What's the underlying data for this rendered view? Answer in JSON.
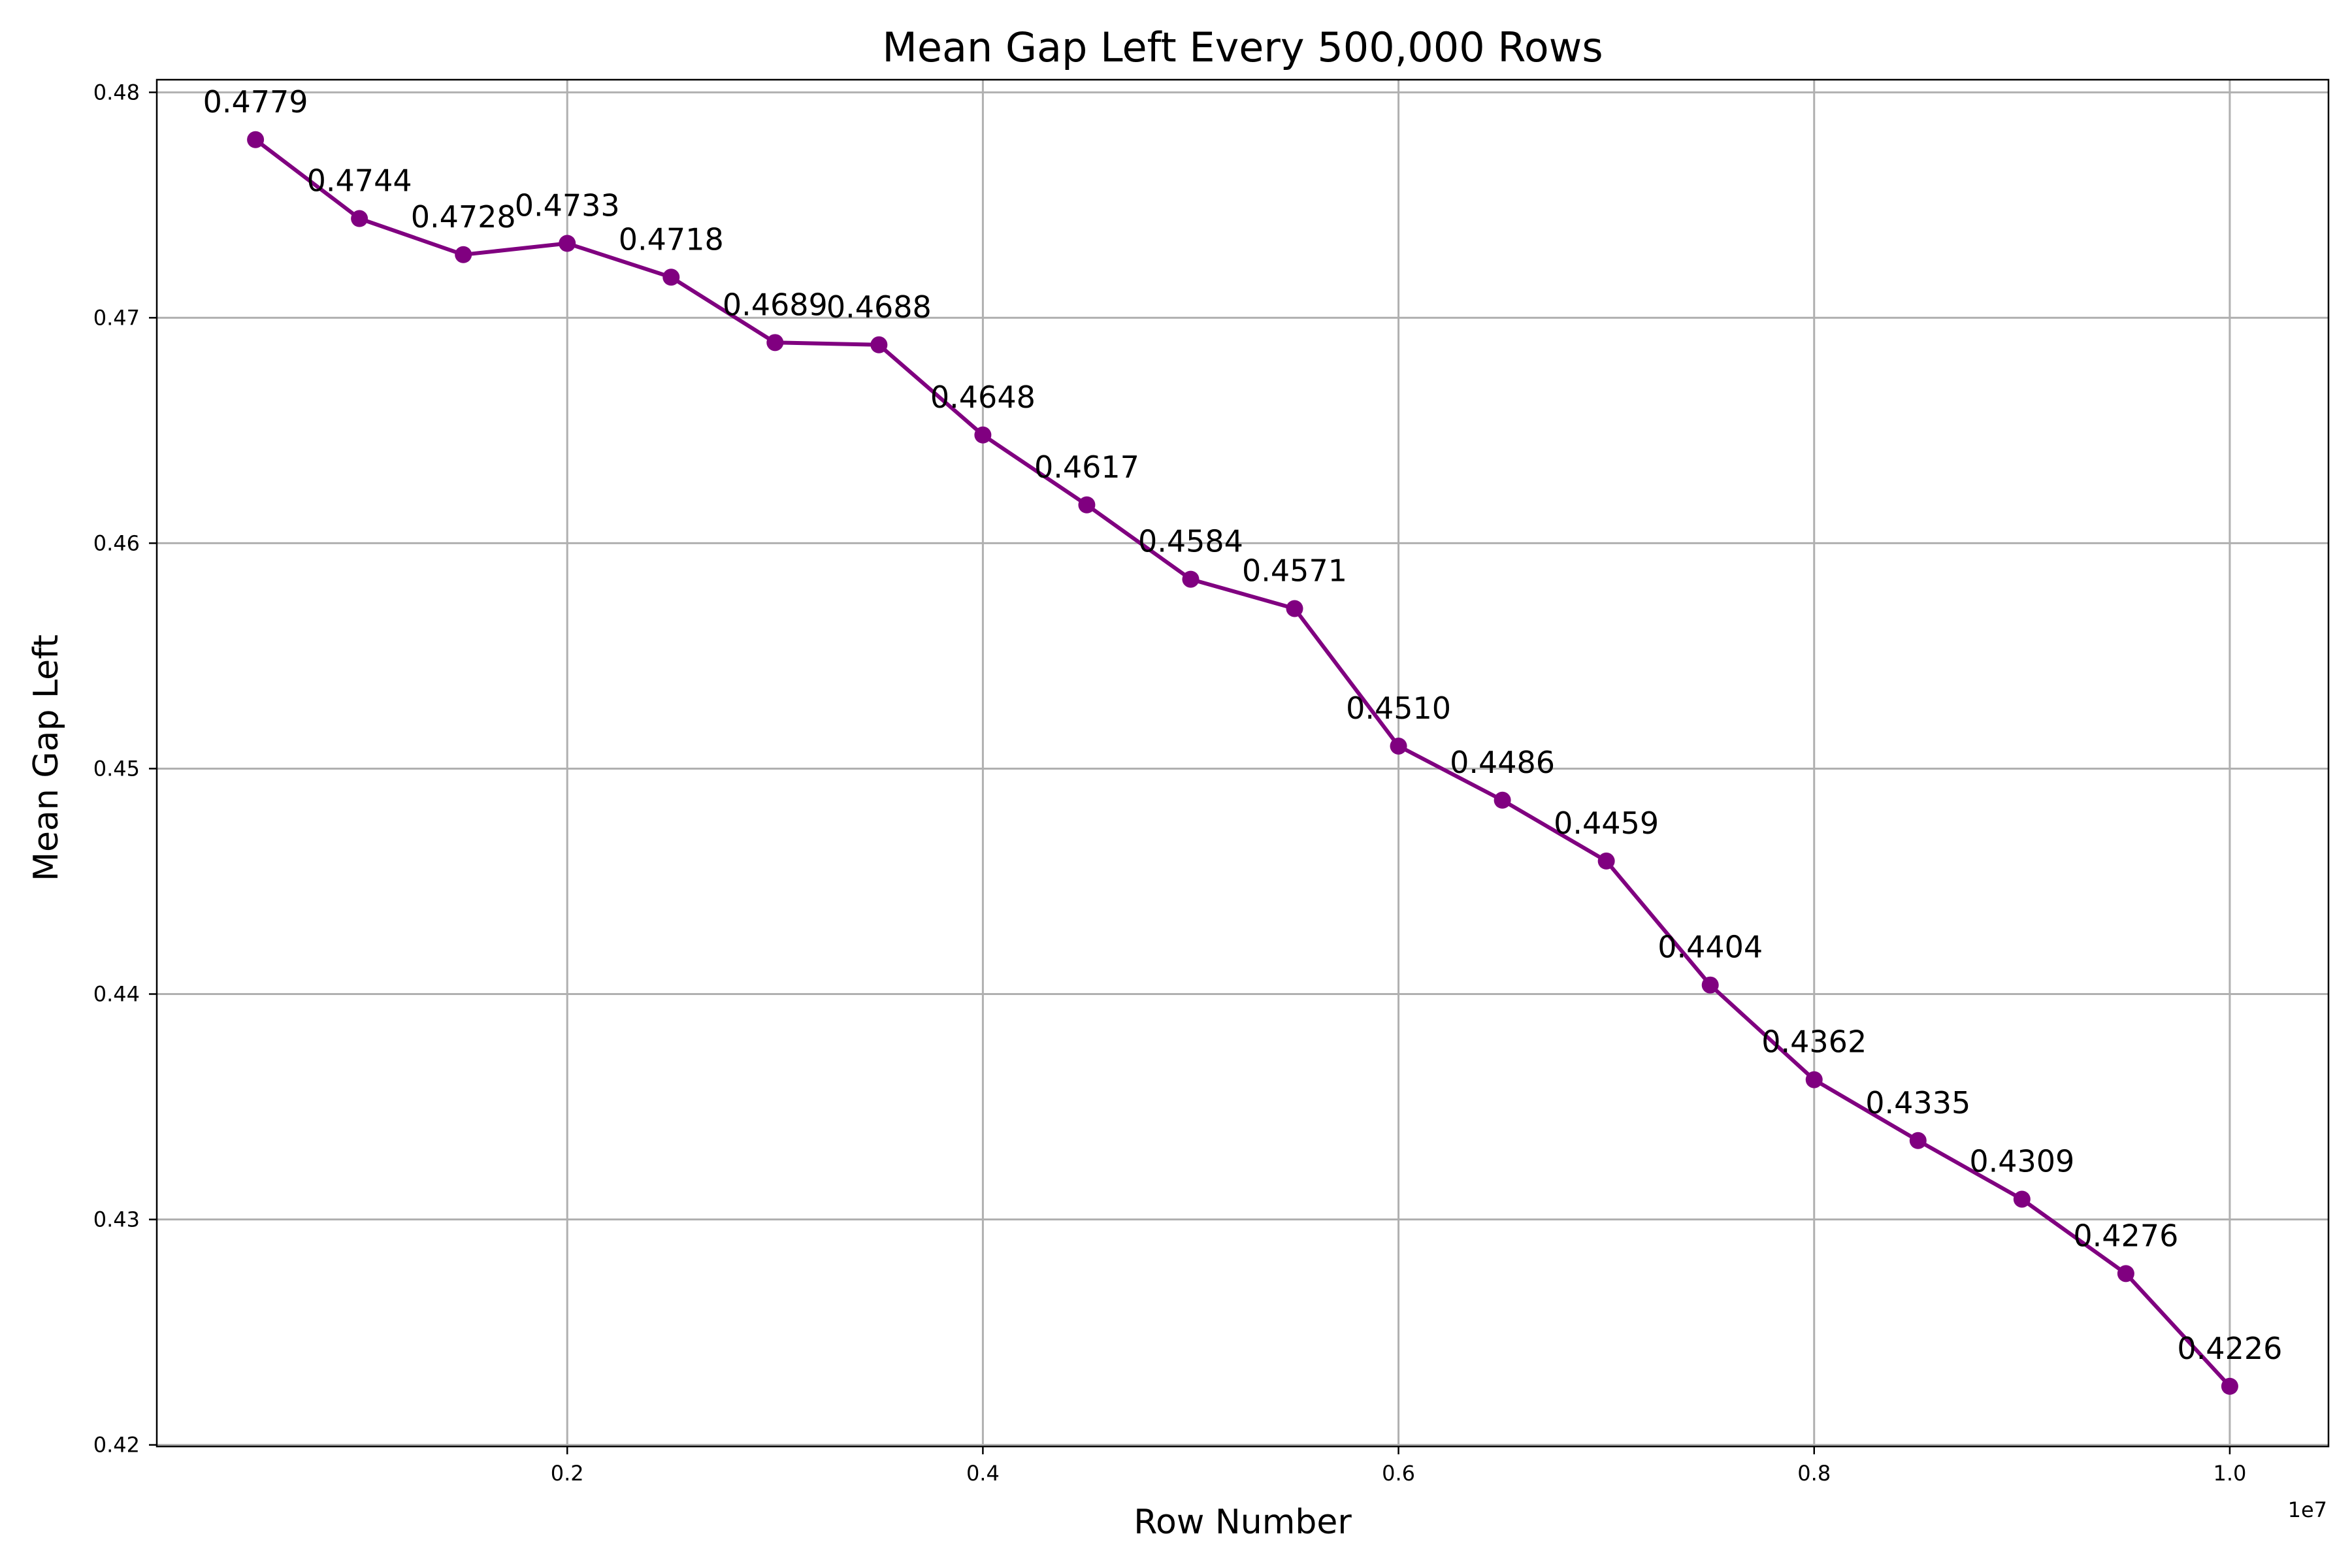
{
  "chart_data": {
    "type": "line",
    "title": "Mean Gap Left Every 500,000 Rows",
    "xlabel": "Row Number",
    "ylabel": "Mean Gap Left",
    "x_offset_label": "1e7",
    "x": [
      500000,
      1000000,
      1500000,
      2000000,
      2500000,
      3000000,
      3500000,
      4000000,
      4500000,
      5000000,
      5500000,
      6000000,
      6500000,
      7000000,
      7500000,
      8000000,
      8500000,
      9000000,
      9500000,
      10000000
    ],
    "series": [
      {
        "values": [
          0.4779,
          0.4744,
          0.4728,
          0.4733,
          0.4718,
          0.4689,
          0.4688,
          0.4648,
          0.4617,
          0.4584,
          0.4571,
          0.451,
          0.4486,
          0.4459,
          0.4404,
          0.4362,
          0.4335,
          0.4309,
          0.4276,
          0.4226
        ],
        "labels": [
          "0.4779",
          "0.4744",
          "0.4728",
          "0.4733",
          "0.4718",
          "0.4689",
          "0.4688",
          "0.4648",
          "0.4617",
          "0.4584",
          "0.4571",
          "0.4510",
          "0.4486",
          "0.4459",
          "0.4404",
          "0.4362",
          "0.4335",
          "0.4309",
          "0.4276",
          "0.4226"
        ],
        "color": "#800080",
        "marker": "circle"
      }
    ],
    "x_ticks": [
      {
        "value": 2000000,
        "label": "0.2"
      },
      {
        "value": 4000000,
        "label": "0.4"
      },
      {
        "value": 6000000,
        "label": "0.6"
      },
      {
        "value": 8000000,
        "label": "0.8"
      },
      {
        "value": 10000000,
        "label": "1.0"
      }
    ],
    "y_ticks": [
      {
        "value": 0.42,
        "label": "0.42"
      },
      {
        "value": 0.43,
        "label": "0.43"
      },
      {
        "value": 0.44,
        "label": "0.44"
      },
      {
        "value": 0.45,
        "label": "0.45"
      },
      {
        "value": 0.46,
        "label": "0.46"
      },
      {
        "value": 0.47,
        "label": "0.47"
      },
      {
        "value": 0.48,
        "label": "0.48"
      }
    ],
    "xlim": [
      25000,
      10475000
    ],
    "ylim": [
      0.41993,
      0.48056
    ],
    "grid": true,
    "legend": "none"
  }
}
